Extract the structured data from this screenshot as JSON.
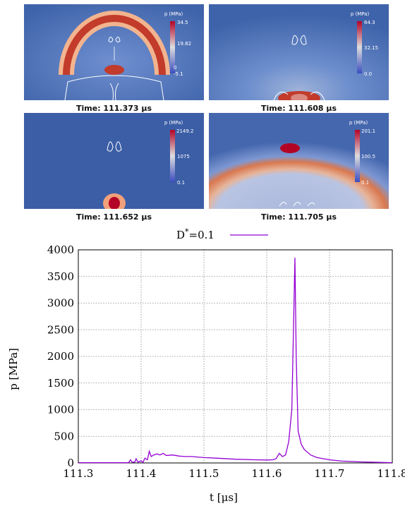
{
  "panels": [
    {
      "caption": "Time: 111.373 μs",
      "colorbar": {
        "title": "p (MPa)",
        "max": "34.5",
        "mid": "19.82",
        "low": "0",
        "min": "-5.1"
      }
    },
    {
      "caption": "Time: 111.608 μs",
      "colorbar": {
        "title": "p (MPa)",
        "max": "64.3",
        "mid": "32.15",
        "min": "0.0"
      }
    },
    {
      "caption": "Time: 111.652 μs",
      "colorbar": {
        "title": "p (MPa)",
        "max": "2149.2",
        "mid": "1075",
        "min": "0.1"
      }
    },
    {
      "caption": "Time: 111.705 μs",
      "colorbar": {
        "title": "p (MPa)",
        "max": "201.1",
        "mid": "100.5",
        "min": "0.1"
      }
    }
  ],
  "colors": {
    "series": "#9400d3",
    "field_base": "#3b5fa6",
    "hot": "#c0392b"
  },
  "chart_data": {
    "type": "line",
    "xlabel": "t [μs]",
    "ylabel": "p [MPa]",
    "xlim": [
      111.3,
      111.8
    ],
    "ylim": [
      0,
      4000
    ],
    "xticks": [
      "111.3",
      "111.4",
      "111.5",
      "111.6",
      "111.7",
      "111.8"
    ],
    "yticks": [
      "0",
      "500",
      "1000",
      "1500",
      "2000",
      "2500",
      "3000",
      "3500",
      "4000"
    ],
    "grid": true,
    "legend_position": "top",
    "series": [
      {
        "name": "D",
        "name_sup": "*",
        "name_suffix": "=0.1",
        "x": [
          111.3,
          111.38,
          111.383,
          111.386,
          111.39,
          111.392,
          111.395,
          111.4,
          111.403,
          111.406,
          111.41,
          111.413,
          111.416,
          111.42,
          111.425,
          111.43,
          111.435,
          111.44,
          111.45,
          111.46,
          111.47,
          111.48,
          111.5,
          111.52,
          111.55,
          111.58,
          111.6,
          111.61,
          111.615,
          111.62,
          111.625,
          111.63,
          111.635,
          111.64,
          111.645,
          111.647,
          111.65,
          111.655,
          111.66,
          111.67,
          111.68,
          111.7,
          111.72,
          111.75,
          111.78,
          111.8
        ],
        "values": [
          5,
          5,
          60,
          10,
          20,
          80,
          15,
          40,
          10,
          90,
          60,
          220,
          120,
          150,
          170,
          150,
          180,
          140,
          150,
          130,
          120,
          120,
          100,
          90,
          70,
          60,
          55,
          60,
          80,
          180,
          120,
          150,
          400,
          1000,
          3850,
          2000,
          600,
          350,
          250,
          150,
          100,
          60,
          35,
          20,
          10,
          5
        ]
      }
    ]
  }
}
